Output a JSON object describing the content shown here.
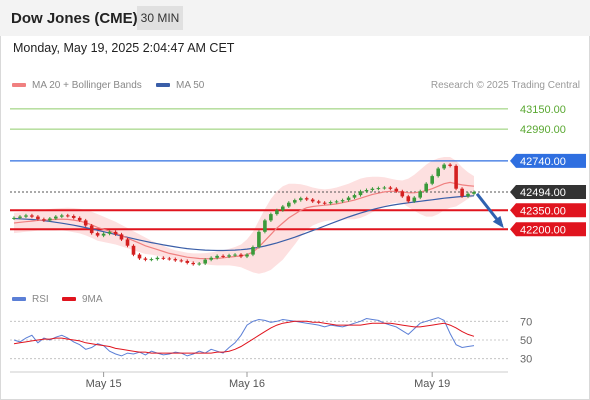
{
  "header": {
    "title": "Dow Jones (CME)",
    "timeframe": "30 MIN",
    "datetime": "Monday, May 19, 2025 2:04:47 AM CET"
  },
  "legend": {
    "ma20_label": "MA 20 + Bollinger Bands",
    "ma50_label": "MA 50",
    "rsi_label": "RSI",
    "ma9_label": "9MA",
    "copyright": "Research © 2025 Trading Central"
  },
  "colors": {
    "ma20": "#f08080",
    "ma50": "#3a5ea8",
    "green_level": "#8fcc6a",
    "blue_level": "#2f6fe0",
    "red_level": "#e0141e",
    "price_badge": "#333333",
    "candle_up": "#3a9a3a",
    "candle_down": "#d42020",
    "bollinger_fill": "#fde0e0",
    "rsi": "#5b7fd6",
    "ma9": "#e0141e"
  },
  "chart_data": {
    "type": "line",
    "title": "Dow Jones (CME)",
    "price_levels": [
      {
        "value": 43150.0,
        "label": "43150.00",
        "kind": "green"
      },
      {
        "value": 42990.0,
        "label": "42990.00",
        "kind": "green"
      },
      {
        "value": 42740.0,
        "label": "42740.00",
        "kind": "blue"
      },
      {
        "value": 42494.0,
        "label": "42494.00",
        "kind": "current"
      },
      {
        "value": 42350.0,
        "label": "42350.00",
        "kind": "red"
      },
      {
        "value": 42200.0,
        "label": "42200.00",
        "kind": "red"
      }
    ],
    "x_ticks": [
      "May 15",
      "May 16",
      "May 19"
    ],
    "price_series": [
      42290,
      42300,
      42310,
      42300,
      42280,
      42270,
      42285,
      42300,
      42310,
      42305,
      42290,
      42270,
      42230,
      42170,
      42150,
      42165,
      42180,
      42160,
      42120,
      42070,
      42000,
      41970,
      41960,
      41965,
      41975,
      41970,
      41965,
      41955,
      41950,
      41935,
      41925,
      41930,
      41960,
      41975,
      41990,
      41985,
      41995,
      42000,
      41985,
      42000,
      42060,
      42180,
      42270,
      42320,
      42350,
      42380,
      42410,
      42430,
      42445,
      42435,
      42420,
      42410,
      42405,
      42415,
      42420,
      42430,
      42450,
      42470,
      42500,
      42510,
      42520,
      42525,
      42530,
      42520,
      42500,
      42460,
      42420,
      42450,
      42500,
      42560,
      42620,
      42680,
      42710,
      42700,
      42520,
      42460,
      42480,
      42494
    ],
    "ma20_series": [
      42250,
      42255,
      42260,
      42265,
      42270,
      42272,
      42275,
      42278,
      42280,
      42278,
      42272,
      42265,
      42252,
      42235,
      42215,
      42200,
      42185,
      42170,
      42150,
      42130,
      42110,
      42090,
      42070,
      42055,
      42040,
      42025,
      42010,
      42000,
      41990,
      41980,
      41975,
      41970,
      41968,
      41968,
      41970,
      41975,
      41980,
      41985,
      41990,
      42000,
      42020,
      42060,
      42110,
      42160,
      42210,
      42250,
      42290,
      42320,
      42350,
      42370,
      42380,
      42385,
      42390,
      42395,
      42400,
      42410,
      42420,
      42430,
      42445,
      42460,
      42475,
      42485,
      42495,
      42500,
      42500,
      42495,
      42488,
      42488,
      42495,
      42505,
      42520,
      42540,
      42560,
      42570,
      42560,
      42550,
      42545,
      42540
    ],
    "ma50_series": [
      42285,
      42283,
      42280,
      42277,
      42273,
      42268,
      42262,
      42255,
      42248,
      42240,
      42232,
      42223,
      42213,
      42203,
      42192,
      42181,
      42170,
      42159,
      42148,
      42137,
      42126,
      42115,
      42105,
      42095,
      42086,
      42077,
      42069,
      42061,
      42054,
      42048,
      42043,
      42039,
      42036,
      42034,
      42033,
      42033,
      42034,
      42036,
      42039,
      42044,
      42050,
      42058,
      42068,
      42080,
      42093,
      42107,
      42122,
      42138,
      42155,
      42172,
      42190,
      42208,
      42226,
      42244,
      42262,
      42280,
      42297,
      42313,
      42328,
      42342,
      42355,
      42367,
      42378,
      42388,
      42396,
      42403,
      42409,
      42415,
      42421,
      42427,
      42433,
      42439,
      42445,
      42450,
      42455,
      42459,
      42462,
      42464
    ],
    "bollinger_upper": [
      42330,
      42335,
      42340,
      42345,
      42350,
      42355,
      42360,
      42365,
      42368,
      42370,
      42368,
      42362,
      42352,
      42338,
      42320,
      42300,
      42280,
      42260,
      42235,
      42210,
      42185,
      42160,
      42135,
      42110,
      42090,
      42070,
      42050,
      42035,
      42025,
      42015,
      42010,
      42010,
      42012,
      42018,
      42025,
      42035,
      42045,
      42060,
      42080,
      42120,
      42180,
      42270,
      42360,
      42440,
      42500,
      42540,
      42560,
      42560,
      42555,
      42545,
      42530,
      42520,
      42515,
      42520,
      42530,
      42545,
      42560,
      42580,
      42600,
      42610,
      42615,
      42615,
      42610,
      42600,
      42590,
      42585,
      42600,
      42630,
      42670,
      42710,
      42740,
      42760,
      42770,
      42770,
      42740,
      42690,
      42650,
      42620
    ],
    "bollinger_lower": [
      42170,
      42175,
      42180,
      42185,
      42190,
      42190,
      42190,
      42190,
      42192,
      42186,
      42176,
      42168,
      42152,
      42132,
      42110,
      42100,
      42090,
      42080,
      42065,
      42050,
      42035,
      42020,
      42005,
      42000,
      41990,
      41980,
      41970,
      41965,
      41955,
      41945,
      41940,
      41930,
      41924,
      41918,
      41915,
      41915,
      41915,
      41910,
      41900,
      41880,
      41860,
      41850,
      41860,
      41880,
      41920,
      41960,
      42020,
      42080,
      42145,
      42195,
      42230,
      42250,
      42265,
      42270,
      42270,
      42275,
      42280,
      42280,
      42290,
      42310,
      42335,
      42355,
      42380,
      42400,
      42410,
      42405,
      42376,
      42346,
      42320,
      42300,
      42300,
      42320,
      42350,
      42370,
      42380,
      42410,
      42440,
      42460
    ],
    "rsi": {
      "y_ticks": [
        70,
        50,
        30
      ],
      "ylim": [
        20,
        80
      ],
      "rsi_series": [
        50,
        48,
        52,
        55,
        47,
        52,
        50,
        53,
        55,
        52,
        48,
        45,
        40,
        42,
        46,
        44,
        38,
        35,
        33,
        36,
        35,
        37,
        34,
        38,
        36,
        34,
        35,
        37,
        36,
        33,
        35,
        38,
        36,
        40,
        38,
        36,
        42,
        47,
        55,
        66,
        70,
        72,
        71,
        69,
        70,
        72,
        71,
        70,
        69,
        68,
        67,
        66,
        64,
        66,
        65,
        64,
        66,
        68,
        70,
        73,
        72,
        71,
        68,
        66,
        64,
        60,
        56,
        62,
        68,
        70,
        72,
        74,
        71,
        57,
        45,
        42,
        43,
        44
      ],
      "ma9_series": [
        46,
        47,
        48,
        49,
        50,
        51,
        51,
        52,
        52,
        51,
        50,
        49,
        47,
        46,
        45,
        44,
        43,
        41,
        40,
        39,
        38,
        37,
        37,
        36,
        36,
        36,
        36,
        36,
        36,
        36,
        36,
        36,
        36,
        36,
        37,
        37,
        38,
        40,
        43,
        47,
        51,
        55,
        59,
        63,
        66,
        68,
        69,
        70,
        70,
        70,
        69,
        69,
        68,
        67,
        66,
        66,
        66,
        66,
        66,
        67,
        68,
        68,
        68,
        68,
        67,
        66,
        65,
        64,
        64,
        65,
        66,
        67,
        68,
        66,
        63,
        59,
        56,
        54
      ]
    }
  }
}
